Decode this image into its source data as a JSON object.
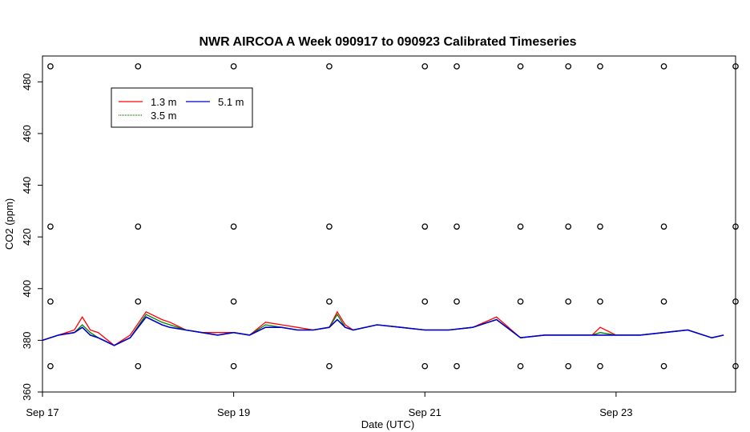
{
  "chart_data": {
    "type": "line",
    "title": "NWR AIRCOA A  Week 090917 to 090923  Calibrated Timeseries",
    "xlabel": "Date (UTC)",
    "ylabel": "CO2 (ppm)",
    "xlim": [
      "2009-09-17T00:00",
      "2009-09-24T06:00"
    ],
    "ylim": [
      360,
      490
    ],
    "x_tick_labels": [
      "Sep 17",
      "Sep 19",
      "Sep 21",
      "Sep 23"
    ],
    "x_tick_dates": [
      "2009-09-17",
      "2009-09-19",
      "2009-09-21",
      "2009-09-23"
    ],
    "y_ticks": [
      360,
      380,
      400,
      420,
      440,
      460,
      480
    ],
    "grid": false,
    "legend_placement": "top-left",
    "colors": {
      "1.3 m": "#ff0000",
      "3.5 m": "#008000",
      "5.1 m": "#0000cc",
      "references": "#000000"
    },
    "series": [
      {
        "name": "1.3 m",
        "x": [
          "2009-09-17T00:00",
          "2009-09-17T04:00",
          "2009-09-17T08:00",
          "2009-09-17T10:00",
          "2009-09-17T12:00",
          "2009-09-17T14:00",
          "2009-09-17T18:00",
          "2009-09-17T22:00",
          "2009-09-18T02:00",
          "2009-09-18T06:00",
          "2009-09-18T08:00",
          "2009-09-18T12:00",
          "2009-09-18T16:00",
          "2009-09-18T20:00",
          "2009-09-19T00:00",
          "2009-09-19T04:00",
          "2009-09-19T08:00",
          "2009-09-19T12:00",
          "2009-09-19T16:00",
          "2009-09-19T20:00",
          "2009-09-20T00:00",
          "2009-09-20T02:00",
          "2009-09-20T04:00",
          "2009-09-20T06:00",
          "2009-09-20T12:00",
          "2009-09-20T18:00",
          "2009-09-21T00:00",
          "2009-09-21T06:00",
          "2009-09-21T12:00",
          "2009-09-21T18:00",
          "2009-09-22T00:00",
          "2009-09-22T06:00",
          "2009-09-22T12:00",
          "2009-09-22T18:00",
          "2009-09-22T20:00",
          "2009-09-23T00:00",
          "2009-09-23T06:00",
          "2009-09-23T12:00",
          "2009-09-23T18:00",
          "2009-09-24T00:00",
          "2009-09-24T03:00"
        ],
        "values": [
          380,
          382,
          384,
          389,
          384,
          383,
          378,
          382,
          391,
          388,
          387,
          384,
          383,
          383,
          383,
          382,
          387,
          386,
          385,
          384,
          385,
          391,
          386,
          384,
          386,
          385,
          384,
          384,
          385,
          389,
          381,
          382,
          382,
          382,
          385,
          382,
          382,
          383,
          384,
          381,
          382
        ]
      },
      {
        "name": "3.5 m",
        "x": [
          "2009-09-17T00:00",
          "2009-09-17T04:00",
          "2009-09-17T08:00",
          "2009-09-17T10:00",
          "2009-09-17T12:00",
          "2009-09-17T14:00",
          "2009-09-17T18:00",
          "2009-09-17T22:00",
          "2009-09-18T02:00",
          "2009-09-18T06:00",
          "2009-09-18T08:00",
          "2009-09-18T12:00",
          "2009-09-18T16:00",
          "2009-09-18T20:00",
          "2009-09-19T00:00",
          "2009-09-19T04:00",
          "2009-09-19T08:00",
          "2009-09-19T12:00",
          "2009-09-19T16:00",
          "2009-09-19T20:00",
          "2009-09-20T00:00",
          "2009-09-20T02:00",
          "2009-09-20T04:00",
          "2009-09-20T06:00",
          "2009-09-20T12:00",
          "2009-09-20T18:00",
          "2009-09-21T00:00",
          "2009-09-21T06:00",
          "2009-09-21T12:00",
          "2009-09-21T18:00",
          "2009-09-22T00:00",
          "2009-09-22T06:00",
          "2009-09-22T12:00",
          "2009-09-22T18:00",
          "2009-09-22T20:00",
          "2009-09-23T00:00",
          "2009-09-23T06:00",
          "2009-09-23T12:00",
          "2009-09-23T18:00",
          "2009-09-24T00:00",
          "2009-09-24T03:00"
        ],
        "values": [
          380,
          382,
          383,
          386,
          383,
          381,
          378,
          381,
          390,
          387,
          386,
          384,
          383,
          382,
          383,
          382,
          386,
          385,
          384,
          384,
          385,
          390,
          385,
          384,
          386,
          385,
          384,
          384,
          385,
          388,
          381,
          382,
          382,
          382,
          383,
          382,
          382,
          383,
          384,
          381,
          382
        ]
      },
      {
        "name": "5.1 m",
        "x": [
          "2009-09-17T00:00",
          "2009-09-17T04:00",
          "2009-09-17T08:00",
          "2009-09-17T10:00",
          "2009-09-17T12:00",
          "2009-09-17T14:00",
          "2009-09-17T18:00",
          "2009-09-17T22:00",
          "2009-09-18T02:00",
          "2009-09-18T06:00",
          "2009-09-18T08:00",
          "2009-09-18T12:00",
          "2009-09-18T16:00",
          "2009-09-18T20:00",
          "2009-09-19T00:00",
          "2009-09-19T04:00",
          "2009-09-19T08:00",
          "2009-09-19T12:00",
          "2009-09-19T16:00",
          "2009-09-19T20:00",
          "2009-09-20T00:00",
          "2009-09-20T02:00",
          "2009-09-20T04:00",
          "2009-09-20T06:00",
          "2009-09-20T12:00",
          "2009-09-20T18:00",
          "2009-09-21T00:00",
          "2009-09-21T06:00",
          "2009-09-21T12:00",
          "2009-09-21T18:00",
          "2009-09-22T00:00",
          "2009-09-22T06:00",
          "2009-09-22T12:00",
          "2009-09-22T18:00",
          "2009-09-22T20:00",
          "2009-09-23T00:00",
          "2009-09-23T06:00",
          "2009-09-23T12:00",
          "2009-09-23T18:00",
          "2009-09-24T00:00",
          "2009-09-24T03:00"
        ],
        "values": [
          380,
          382,
          383,
          385,
          382,
          381,
          378,
          381,
          389,
          386,
          385,
          384,
          383,
          382,
          383,
          382,
          385,
          385,
          384,
          384,
          385,
          388,
          385,
          384,
          386,
          385,
          384,
          384,
          385,
          388,
          381,
          382,
          382,
          382,
          382,
          382,
          382,
          383,
          384,
          381,
          382
        ]
      },
      {
        "name": "",
        "style": "points",
        "x": [
          "2009-09-17T02:00",
          "2009-09-18T00:00",
          "2009-09-19T00:00",
          "2009-09-20T00:00",
          "2009-09-21T00:00",
          "2009-09-21T08:00",
          "2009-09-22T00:00",
          "2009-09-22T12:00",
          "2009-09-22T20:00",
          "2009-09-23T12:00",
          "2009-09-24T06:00"
        ],
        "values": [
          486,
          486,
          486,
          486,
          486,
          486,
          486,
          486,
          486,
          486,
          486
        ]
      },
      {
        "name": "",
        "style": "points",
        "x": [
          "2009-09-17T02:00",
          "2009-09-18T00:00",
          "2009-09-19T00:00",
          "2009-09-20T00:00",
          "2009-09-21T00:00",
          "2009-09-21T08:00",
          "2009-09-22T00:00",
          "2009-09-22T12:00",
          "2009-09-22T20:00",
          "2009-09-23T12:00",
          "2009-09-24T06:00"
        ],
        "values": [
          424,
          424,
          424,
          424,
          424,
          424,
          424,
          424,
          424,
          424,
          424
        ]
      },
      {
        "name": "",
        "style": "points",
        "x": [
          "2009-09-17T02:00",
          "2009-09-18T00:00",
          "2009-09-19T00:00",
          "2009-09-20T00:00",
          "2009-09-21T00:00",
          "2009-09-21T08:00",
          "2009-09-22T00:00",
          "2009-09-22T12:00",
          "2009-09-22T20:00",
          "2009-09-23T12:00",
          "2009-09-24T06:00"
        ],
        "values": [
          395,
          395,
          395,
          395,
          395,
          395,
          395,
          395,
          395,
          395,
          395
        ]
      },
      {
        "name": "",
        "style": "points",
        "x": [
          "2009-09-17T02:00",
          "2009-09-18T00:00",
          "2009-09-19T00:00",
          "2009-09-20T00:00",
          "2009-09-21T00:00",
          "2009-09-21T08:00",
          "2009-09-22T00:00",
          "2009-09-22T12:00",
          "2009-09-22T20:00",
          "2009-09-23T12:00",
          "2009-09-24T06:00"
        ],
        "values": [
          370,
          370,
          370,
          370,
          370,
          370,
          370,
          370,
          370,
          370,
          370
        ]
      }
    ]
  }
}
